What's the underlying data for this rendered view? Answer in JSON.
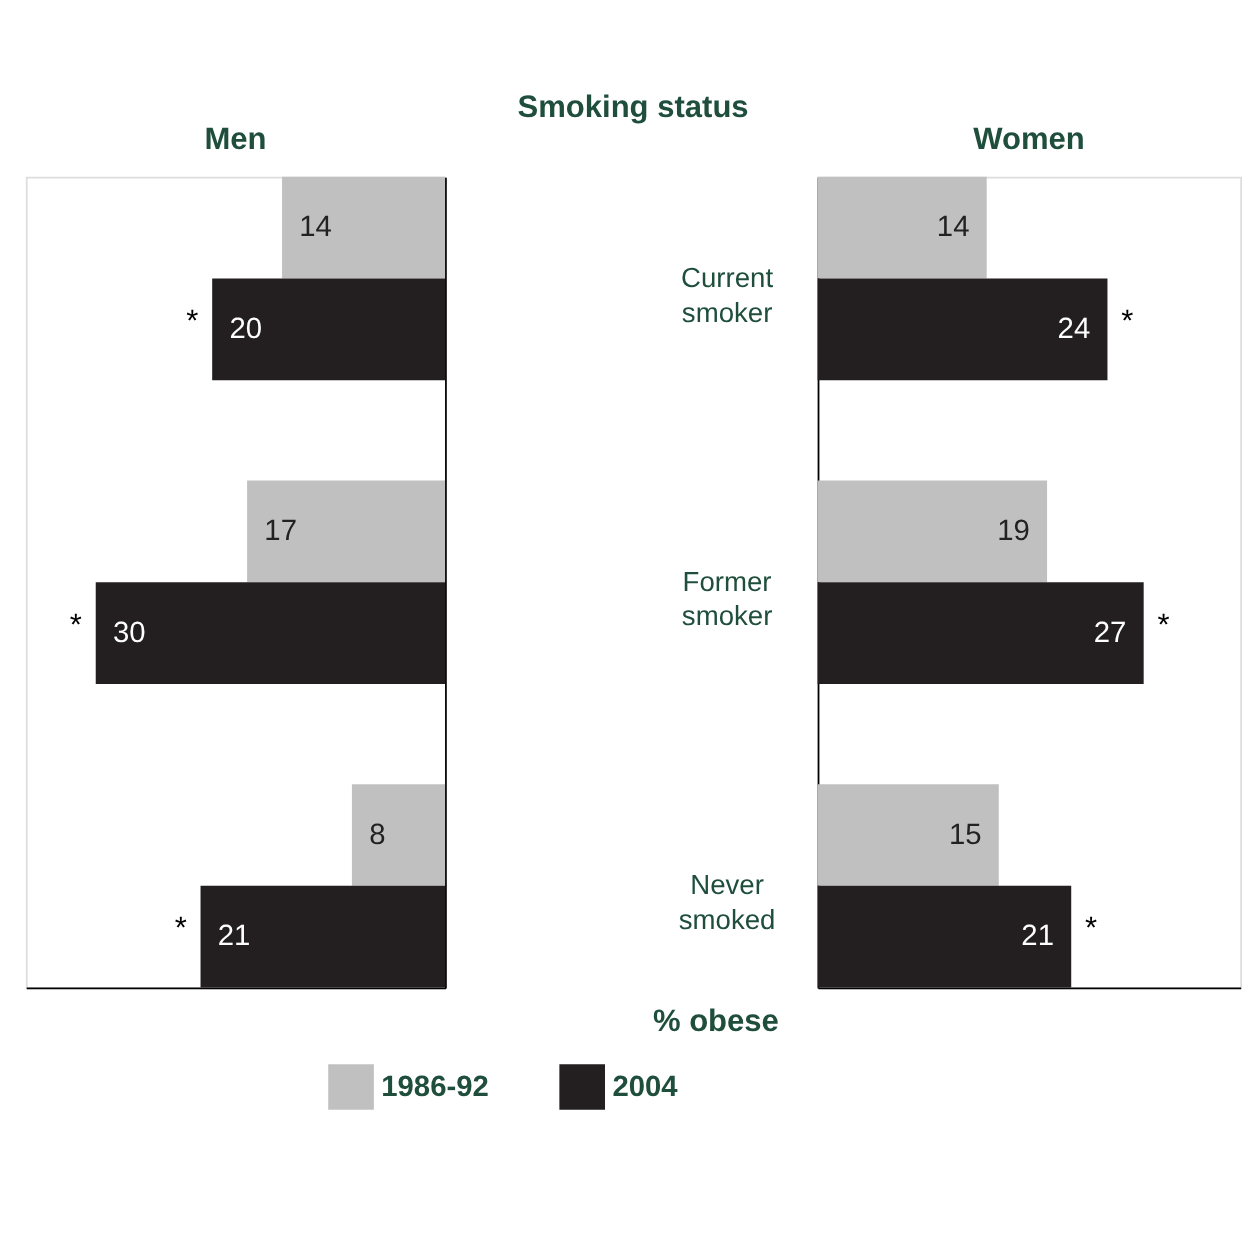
{
  "chart_data": [
    {
      "type": "bar",
      "orientation": "horizontal",
      "title": "Men",
      "categories": [
        "Current smoker",
        "Former smoker",
        "Never smoked"
      ],
      "series": [
        {
          "name": "1986-92",
          "color": "#c0c0c0",
          "values": [
            14,
            17,
            8
          ]
        },
        {
          "name": "2004",
          "color": "#231f20",
          "values": [
            20,
            30,
            21
          ]
        }
      ],
      "xlim": [
        36,
        0
      ],
      "data_labels": true,
      "grid": false,
      "legend": "bottom",
      "tick_labels": false,
      "annotations": [
        {
          "text": "*",
          "x": 20,
          "y": "Current smoker"
        },
        {
          "text": "*",
          "x": 30,
          "y": "Former smoker"
        },
        {
          "text": "*",
          "x": 21,
          "y": "Never smoked"
        }
      ]
    },
    {
      "type": "bar",
      "orientation": "horizontal",
      "title": "Women",
      "xlabel": "% obese",
      "categories": [
        "Current smoker",
        "Former smoker",
        "Never smoked"
      ],
      "series": [
        {
          "name": "1986-92",
          "color": "#c0c0c0",
          "values": [
            14,
            19,
            15
          ]
        },
        {
          "name": "2004",
          "color": "#231f20",
          "values": [
            24,
            27,
            21
          ]
        }
      ],
      "xlim": [
        0,
        35
      ],
      "data_labels": true,
      "grid": false,
      "legend": "bottom",
      "tick_labels": "y",
      "annotations": [
        "Smoking status",
        {
          "text": "*",
          "x": 24,
          "y": "Current smoker"
        },
        {
          "text": "*",
          "x": 27,
          "y": "Former smoker"
        },
        {
          "text": "*",
          "x": 21,
          "y": "Never smoked"
        }
      ]
    }
  ]
}
